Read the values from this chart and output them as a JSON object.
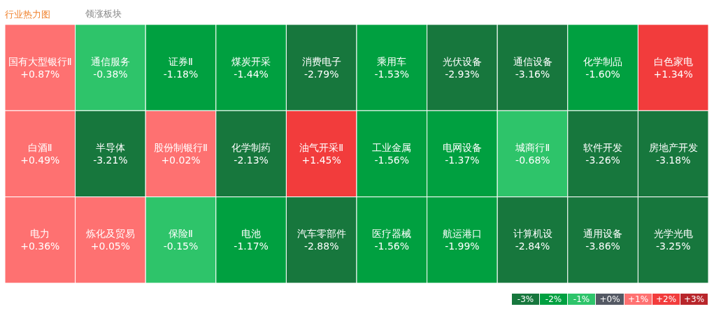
{
  "chart_data": [
    {
      "type": "other",
      "title": "行业热力图",
      "subtitle": "领涨板块",
      "categories": [
        "国有大型银行Ⅱ",
        "白酒Ⅱ",
        "电力",
        "通信服务",
        "半导体",
        "炼化及贸易",
        "证券Ⅱ",
        "股份制银行Ⅱ",
        "保险Ⅱ",
        "煤炭开采",
        "化学制药",
        "电池",
        "消费电子",
        "油气开采Ⅱ",
        "汽车零部件",
        "乘用车",
        "工业金属",
        "医疗器械",
        "光伏设备",
        "电网设备",
        "航运港口",
        "通信设备",
        "化学制品",
        "白色家电",
        "城商行Ⅱ",
        "计算机设",
        "软件开发",
        "房地产开发",
        "通用设备",
        "光学光电"
      ],
      "values": [
        0.87,
        0.49,
        0.36,
        -0.38,
        -3.21,
        0.05,
        -1.18,
        0.02,
        -0.15,
        -1.44,
        -2.13,
        -1.17,
        -2.79,
        1.45,
        -2.88,
        -1.53,
        -1.56,
        -1.56,
        -2.93,
        -1.37,
        -1.99,
        -3.16,
        -1.6,
        1.34,
        -0.68,
        -2.84,
        -3.26,
        -3.18,
        -3.86,
        -3.25
      ],
      "value_labels": [
        "+0.87%",
        "+0.49%",
        "+0.36%",
        "-0.38%",
        "-3.21%",
        "+0.05%",
        "-1.18%",
        "+0.02%",
        "-0.15%",
        "-1.44%",
        "-2.13%",
        "-1.17%",
        "-2.79%",
        "+1.45%",
        "-2.88%",
        "-1.53%",
        "-1.56%",
        "-1.56%",
        "-2.93%",
        "-1.37%",
        "-1.99%",
        "-3.16%",
        "-1.60%",
        "+1.34%",
        "-0.68%",
        "-2.84%",
        "-3.26%",
        "-3.18%",
        "-3.86%",
        "-3.25%"
      ]
    },
    {
      "type": "heatmap",
      "categories": [
        null,
        null,
        null,
        null,
        null,
        null,
        null
      ],
      "y_categories": [
        null
      ],
      "cells": [
        [
          -3,
          -2,
          -1,
          0,
          1,
          2,
          3
        ]
      ],
      "cell_labels": [
        [
          "-3%",
          "-2%",
          "-1%",
          "+0%",
          "+1%",
          "+2%",
          "+3%"
        ]
      ],
      "colors": [
        "#17773d",
        "#00a040",
        "#2ec46a",
        "#545964",
        "#fe7171",
        "#f23c3c",
        "#b8262b"
      ]
    }
  ]
}
